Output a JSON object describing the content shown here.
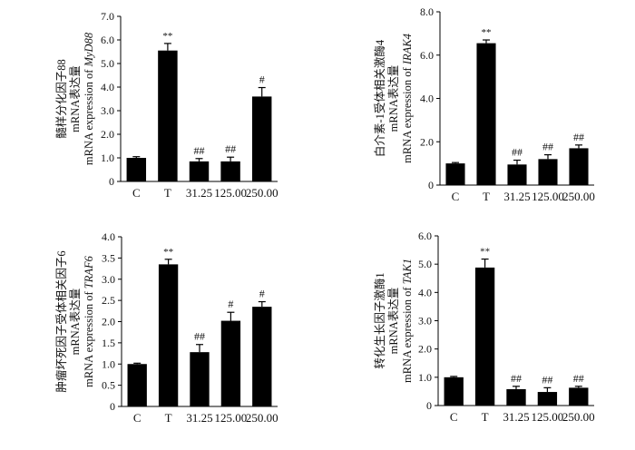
{
  "chart_data": [
    {
      "type": "bar",
      "categories": [
        "C",
        "T",
        "31.25",
        "125.00",
        "250.00"
      ],
      "values": [
        1.0,
        5.55,
        0.85,
        0.85,
        3.6
      ],
      "errors": [
        0.05,
        0.3,
        0.12,
        0.18,
        0.38
      ],
      "annotations": [
        "",
        "**",
        "##",
        "##",
        "#"
      ],
      "ylim": [
        0,
        7.0
      ],
      "yticks": [
        "0",
        "1.0",
        "2.0",
        "3.0",
        "4.0",
        "5.0",
        "6.0",
        "7.0"
      ],
      "ylabel_lines": [
        {
          "text": "髓样分化因子88",
          "italic": ""
        },
        {
          "text": "mRNA表达量",
          "italic": ""
        },
        {
          "text": "mRNA expression of ",
          "italic": "MyD88"
        }
      ]
    },
    {
      "type": "bar",
      "categories": [
        "C",
        "T",
        "31.25",
        "125.00",
        "250.00"
      ],
      "values": [
        1.0,
        6.55,
        0.95,
        1.2,
        1.7
      ],
      "errors": [
        0.04,
        0.15,
        0.2,
        0.2,
        0.15
      ],
      "annotations": [
        "",
        "**",
        "##",
        "##",
        "##"
      ],
      "ylim": [
        0,
        8.0
      ],
      "yticks": [
        "0",
        "2.0",
        "4.0",
        "6.0",
        "8.0"
      ],
      "ylabel_lines": [
        {
          "text": "白介素-1受体相关激酶4",
          "italic": ""
        },
        {
          "text": "mRNA表达量",
          "italic": ""
        },
        {
          "text": "mRNA expression of ",
          "italic": "IRAK4"
        }
      ]
    },
    {
      "type": "bar",
      "categories": [
        "C",
        "T",
        "31.25",
        "125.00",
        "250.00"
      ],
      "values": [
        1.0,
        3.35,
        1.28,
        2.02,
        2.35
      ],
      "errors": [
        0.02,
        0.12,
        0.18,
        0.2,
        0.12
      ],
      "annotations": [
        "",
        "**",
        "##",
        "#",
        "#"
      ],
      "ylim": [
        0,
        4.0
      ],
      "yticks": [
        "0",
        "0.5",
        "1.0",
        "1.5",
        "2.0",
        "2.5",
        "3.0",
        "3.5",
        "4.0"
      ],
      "ylabel_lines": [
        {
          "text": "肿瘤坏死因子受体相关因子6",
          "italic": ""
        },
        {
          "text": "mRNA表达量",
          "italic": ""
        },
        {
          "text": "mRNA expression of ",
          "italic": "TRAF6"
        }
      ]
    },
    {
      "type": "bar",
      "categories": [
        "C",
        "T",
        "31.25",
        "125.00",
        "250.00"
      ],
      "values": [
        1.0,
        4.88,
        0.58,
        0.48,
        0.63
      ],
      "errors": [
        0.03,
        0.3,
        0.1,
        0.15,
        0.05
      ],
      "annotations": [
        "",
        "**",
        "##",
        "##",
        "##"
      ],
      "ylim": [
        0,
        6.0
      ],
      "yticks": [
        "0",
        "1.0",
        "2.0",
        "3.0",
        "4.0",
        "5.0",
        "6.0"
      ],
      "ylabel_lines": [
        {
          "text": "转化生长因子激酶1",
          "italic": ""
        },
        {
          "text": "mRNA表达量",
          "italic": ""
        },
        {
          "text": "mRNA expression of ",
          "italic": "TAK1"
        }
      ]
    }
  ]
}
